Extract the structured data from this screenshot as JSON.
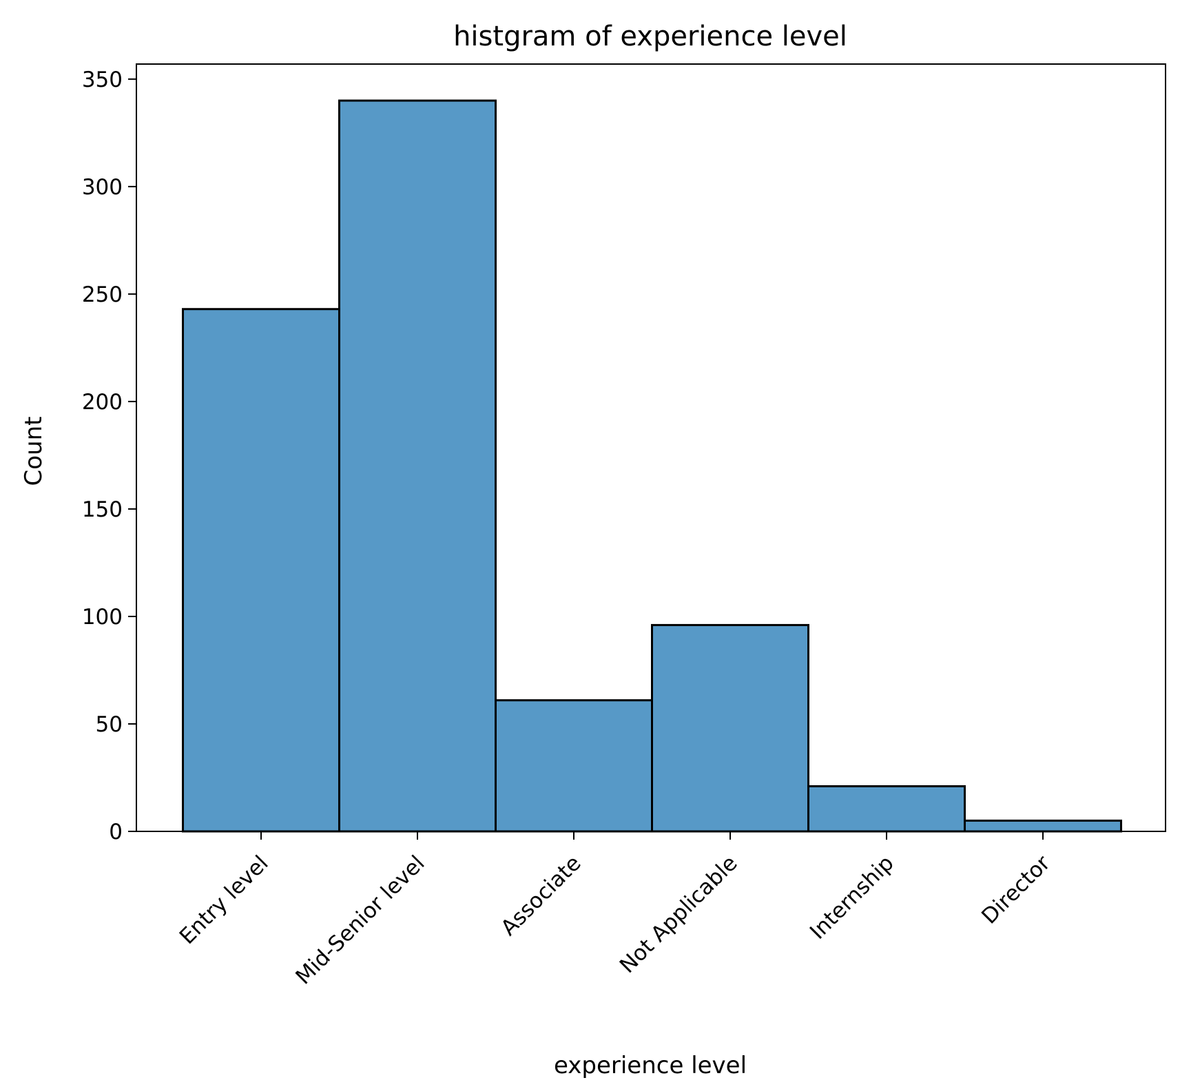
{
  "chart_data": {
    "type": "bar",
    "title": "histgram of experience level",
    "xlabel": "experience level",
    "ylabel": "Count",
    "categories": [
      "Entry level",
      "Mid-Senior level",
      "Associate",
      "Not Applicable",
      "Internship",
      "Director"
    ],
    "values": [
      243,
      340,
      61,
      96,
      21,
      5
    ],
    "ylim": [
      0,
      357
    ],
    "yticks": [
      0,
      50,
      100,
      150,
      200,
      250,
      300,
      350
    ],
    "grid": false,
    "legend": "none",
    "colors": {
      "bar_fill": "#5799c7",
      "bar_edge": "#000000",
      "axis": "#000000",
      "background": "#ffffff"
    }
  }
}
